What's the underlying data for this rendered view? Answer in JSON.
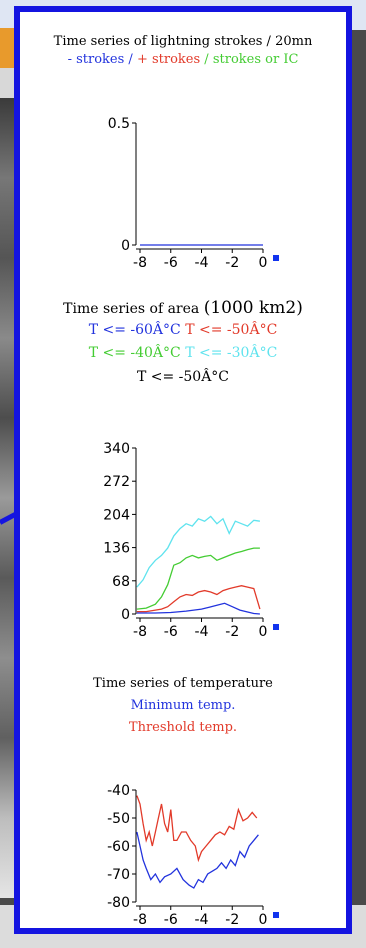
{
  "colors": {
    "blue": "#2233dd",
    "red": "#e23a2a",
    "green": "#44cc33",
    "cyan": "#5fe3ee",
    "marker": "#1133ee"
  },
  "lightning": {
    "title": "Time series of lightning strokes / 20mn",
    "legend": {
      "minus": "- strokes",
      "sep1": " / ",
      "plus": "+ strokes",
      "sep2": " / ",
      "ic": "strokes or IC"
    }
  },
  "area": {
    "title": "Time series of area",
    "unit": "(1000 km2)",
    "legend": {
      "t60": "T <= -60Â°C",
      "t50": "T <= -50Â°C",
      "t40": "T <= -40Â°C",
      "t30": "T <= -30Â°C",
      "t50b": "T <= -50Â°C"
    }
  },
  "temperature": {
    "title": "Time series of temperature",
    "min_label": "Minimum temp.",
    "threshold_label": "Threshold temp."
  },
  "chart_data": [
    {
      "type": "line",
      "title": "Time series of lightning strokes / 20mn",
      "xlim": [
        -8,
        0
      ],
      "ylim": [
        0,
        0.5
      ],
      "xticks": [
        "-8",
        "-6",
        "-4",
        "-2",
        "0"
      ],
      "yticks": [
        "0",
        "0.5"
      ],
      "series": [
        {
          "name": "- strokes",
          "color": "#2233dd",
          "x": [
            -8,
            0
          ],
          "y": [
            0,
            0
          ]
        }
      ]
    },
    {
      "type": "line",
      "title": "Time series of area (1000 km2)",
      "xlim": [
        -8,
        0
      ],
      "ylim": [
        0,
        340
      ],
      "xticks": [
        "-8",
        "-6",
        "-4",
        "-2",
        "0"
      ],
      "yticks": [
        "0",
        "68",
        "136",
        "204",
        "272",
        "340"
      ],
      "series": [
        {
          "name": "T <= -30Â°C",
          "color": "#5fe3ee",
          "x": [
            -8.2,
            -7.8,
            -7.4,
            -7.0,
            -6.6,
            -6.2,
            -5.8,
            -5.4,
            -5.0,
            -4.6,
            -4.2,
            -3.8,
            -3.4,
            -3.0,
            -2.6,
            -2.2,
            -1.8,
            -1.4,
            -1.0,
            -0.6,
            -0.2
          ],
          "y": [
            55,
            70,
            95,
            110,
            120,
            135,
            160,
            175,
            185,
            180,
            195,
            190,
            200,
            185,
            195,
            165,
            190,
            185,
            180,
            192,
            190
          ]
        },
        {
          "name": "T <= -40Â°C",
          "color": "#44cc33",
          "x": [
            -8.2,
            -7.6,
            -7.0,
            -6.6,
            -6.2,
            -5.8,
            -5.4,
            -5.0,
            -4.6,
            -4.2,
            -3.8,
            -3.4,
            -3.0,
            -2.6,
            -2.2,
            -1.8,
            -1.4,
            -1.0,
            -0.6,
            -0.2
          ],
          "y": [
            10,
            12,
            20,
            35,
            60,
            100,
            105,
            115,
            120,
            115,
            118,
            120,
            110,
            115,
            120,
            125,
            128,
            132,
            135,
            135
          ]
        },
        {
          "name": "T <= -50Â°C",
          "color": "#e23a2a",
          "x": [
            -8.2,
            -7.6,
            -7.0,
            -6.6,
            -6.2,
            -5.8,
            -5.4,
            -5.0,
            -4.6,
            -4.2,
            -3.8,
            -3.4,
            -3.0,
            -2.6,
            -2.2,
            -1.8,
            -1.4,
            -1.0,
            -0.6,
            -0.2
          ],
          "y": [
            5,
            5,
            8,
            10,
            15,
            25,
            35,
            40,
            38,
            45,
            48,
            45,
            40,
            48,
            52,
            55,
            58,
            55,
            52,
            10
          ]
        },
        {
          "name": "T <= -60Â°C",
          "color": "#2233dd",
          "x": [
            -8.2,
            -7.0,
            -6.0,
            -5.0,
            -4.0,
            -3.5,
            -3.0,
            -2.5,
            -2.0,
            -1.5,
            -1.0,
            -0.6,
            -0.2
          ],
          "y": [
            2,
            2,
            3,
            6,
            10,
            14,
            18,
            22,
            15,
            8,
            4,
            1,
            0
          ]
        }
      ]
    },
    {
      "type": "line",
      "title": "Time series of temperature",
      "xlim": [
        -8,
        0
      ],
      "ylim": [
        -80,
        -40
      ],
      "xticks": [
        "-8",
        "-6",
        "-4",
        "-2",
        "0"
      ],
      "yticks": [
        "-40",
        "-50",
        "-60",
        "-70",
        "-80"
      ],
      "series": [
        {
          "name": "Minimum temp.",
          "color": "#2233dd",
          "x": [
            -8.2,
            -8.0,
            -7.8,
            -7.6,
            -7.3,
            -7.0,
            -6.7,
            -6.4,
            -6.0,
            -5.6,
            -5.2,
            -4.8,
            -4.5,
            -4.2,
            -3.9,
            -3.6,
            -3.3,
            -3.0,
            -2.7,
            -2.4,
            -2.1,
            -1.8,
            -1.5,
            -1.2,
            -0.9,
            -0.6,
            -0.3
          ],
          "y": [
            -55,
            -60,
            -65,
            -68,
            -72,
            -70,
            -73,
            -71,
            -70,
            -68,
            -72,
            -74,
            -75,
            -72,
            -73,
            -70,
            -69,
            -68,
            -66,
            -68,
            -65,
            -67,
            -62,
            -64,
            -60,
            -58,
            -56
          ]
        },
        {
          "name": "Threshold temp.",
          "color": "#e23a2a",
          "x": [
            -8.2,
            -8.0,
            -7.8,
            -7.6,
            -7.4,
            -7.2,
            -7.0,
            -6.8,
            -6.6,
            -6.4,
            -6.2,
            -6.0,
            -5.8,
            -5.6,
            -5.3,
            -5.0,
            -4.7,
            -4.4,
            -4.2,
            -4.0,
            -3.7,
            -3.4,
            -3.1,
            -2.8,
            -2.5,
            -2.2,
            -1.9,
            -1.6,
            -1.3,
            -1.0,
            -0.7,
            -0.4
          ],
          "y": [
            -42,
            -45,
            -52,
            -58,
            -55,
            -60,
            -55,
            -50,
            -45,
            -52,
            -55,
            -47,
            -58,
            -58,
            -55,
            -55,
            -58,
            -60,
            -65,
            -62,
            -60,
            -58,
            -56,
            -55,
            -56,
            -53,
            -54,
            -47,
            -51,
            -50,
            -48,
            -50
          ]
        }
      ]
    }
  ]
}
